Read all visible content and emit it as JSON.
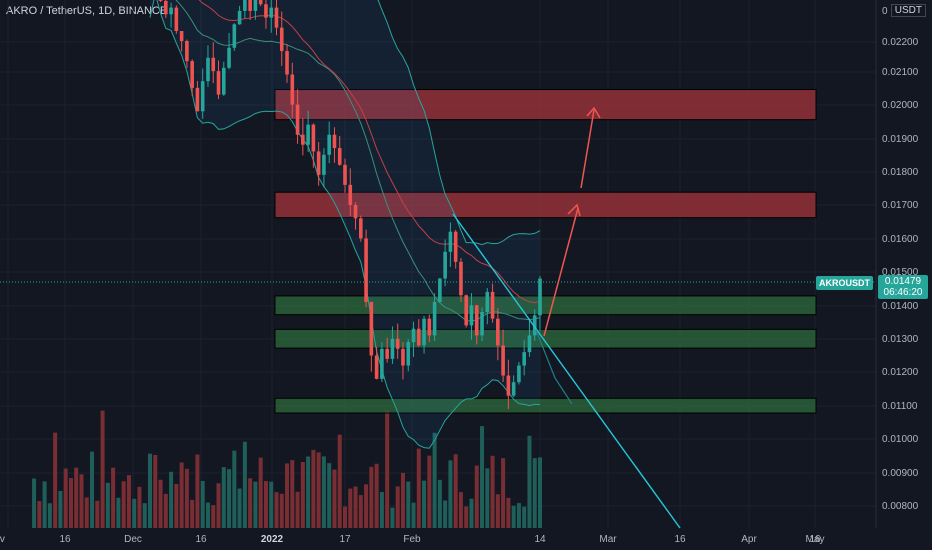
{
  "title": {
    "symbol": "AKRO / TetherUS",
    "interval": "1D",
    "exchange": "BINANCE"
  },
  "currency": "USDT",
  "price_badge": {
    "symbol": "AKROUSDT",
    "price": "0.01479",
    "countdown": "06:46:20"
  },
  "colors": {
    "background": "#131722",
    "bull": "#26a69a",
    "bear": "#ef5350",
    "trendline": "#26c6da",
    "arrow": "#f05650",
    "resistance_zone": "#a4343c",
    "support_zone": "#2e6b3c"
  },
  "chart_data": {
    "type": "candlestick",
    "y_axis": {
      "ticks": [
        "0.00800",
        "0.00900",
        "0.01000",
        "0.01100",
        "0.01200",
        "0.01300",
        "0.01400",
        "0.01500",
        "0.01600",
        "0.01700",
        "0.01800",
        "0.01900",
        "0.02000",
        "0.02100",
        "0.02200",
        "0"
      ],
      "range": [
        0.0078,
        0.0231
      ]
    },
    "x_axis": {
      "ticks": [
        "Nov",
        "16",
        "Dec",
        "16",
        "2022",
        "17",
        "Feb",
        "14",
        "Mar",
        "16",
        "Apr",
        "16",
        "May"
      ],
      "bold": [
        "2022"
      ]
    },
    "last_price": 0.01479,
    "candles_close": [
      0.0242,
      0.0236,
      0.0231,
      0.0227,
      0.0229,
      0.0222,
      0.0219,
      0.0213,
      0.0205,
      0.0198,
      0.0207,
      0.0214,
      0.021,
      0.0203,
      0.0211,
      0.0217,
      0.0224,
      0.0228,
      0.0232,
      0.0228,
      0.0234,
      0.023,
      0.0226,
      0.0229,
      0.0223,
      0.0216,
      0.0209,
      0.02,
      0.0191,
      0.0188,
      0.0194,
      0.0186,
      0.0179,
      0.0185,
      0.0191,
      0.0187,
      0.0182,
      0.0176,
      0.017,
      0.0166,
      0.016,
      0.0141,
      0.0125,
      0.0118,
      0.0127,
      0.0124,
      0.013,
      0.0127,
      0.0122,
      0.0129,
      0.0133,
      0.0128,
      0.0136,
      0.0131,
      0.0141,
      0.0148,
      0.0156,
      0.0162,
      0.0153,
      0.0143,
      0.0134,
      0.014,
      0.0131,
      0.0138,
      0.0144,
      0.0136,
      0.0128,
      0.0119,
      0.0113,
      0.0117,
      0.0122,
      0.0126,
      0.0131,
      0.0137,
      0.0148
    ],
    "zones": [
      {
        "kind": "resistance",
        "low": 0.01955,
        "high": 0.02045
      },
      {
        "kind": "resistance",
        "low": 0.01662,
        "high": 0.01738
      },
      {
        "kind": "support",
        "low": 0.01372,
        "high": 0.01428
      },
      {
        "kind": "support",
        "low": 0.01272,
        "high": 0.01328
      },
      {
        "kind": "support",
        "low": 0.01078,
        "high": 0.01122
      }
    ],
    "grid": true,
    "legend": "none"
  }
}
